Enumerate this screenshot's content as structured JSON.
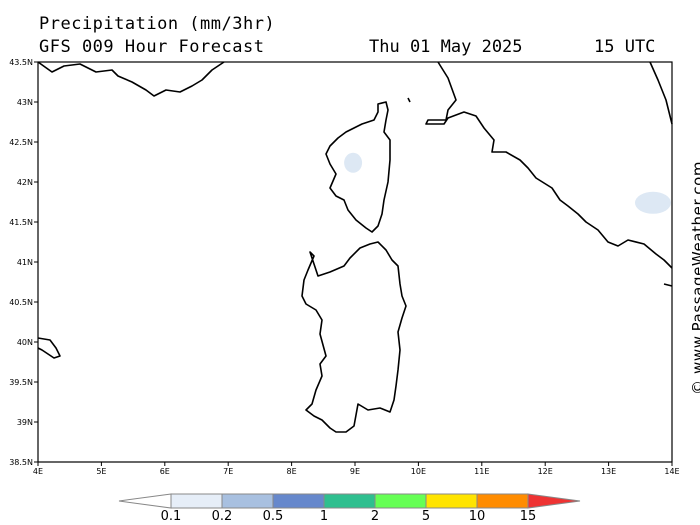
{
  "header": {
    "title": "Precipitation (mm/3hr)",
    "subtitle": "GFS 009 Hour Forecast",
    "date": "Thu 01 May 2025",
    "time": "15 UTC"
  },
  "map": {
    "lat_ticks": [
      "43.5N",
      "43N",
      "42.5N",
      "42N",
      "41.5N",
      "41N",
      "40.5N",
      "40N",
      "39.5N",
      "39N",
      "38.5N"
    ],
    "lon_ticks": [
      "4E",
      "5E",
      "6E",
      "7E",
      "8E",
      "9E",
      "10E",
      "11E",
      "12E",
      "13E",
      "14E"
    ],
    "lat_range": [
      38.5,
      43.5
    ],
    "lon_range": [
      4,
      14
    ],
    "precip_areas": [
      {
        "lon": 8.97,
        "lat": 42.24,
        "color": "#dde8f4"
      },
      {
        "lon": 13.7,
        "lat": 41.74,
        "color": "#dde8f4"
      }
    ]
  },
  "legend": {
    "labels": [
      "0.1",
      "0.2",
      "0.5",
      "1",
      "2",
      "5",
      "10",
      "15"
    ],
    "colors": [
      "#ffffff",
      "#e6eef8",
      "#a8c0e0",
      "#6688cc",
      "#2fbf8f",
      "#66ff55",
      "#ffe400",
      "#ff8c00",
      "#ee3333"
    ]
  },
  "credit": "© www.PassageWeather.com"
}
